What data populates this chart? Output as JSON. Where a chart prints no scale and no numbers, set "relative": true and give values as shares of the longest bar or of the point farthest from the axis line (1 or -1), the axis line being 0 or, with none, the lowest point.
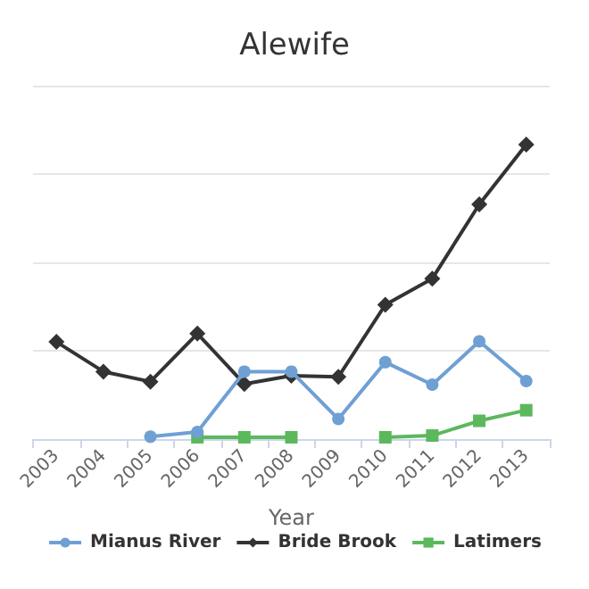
{
  "chart_data": {
    "type": "line",
    "title": "Alewife",
    "xlabel": "Year",
    "categories": [
      "2003",
      "2004",
      "2005",
      "2006",
      "2007",
      "2008",
      "2009",
      "2010",
      "2011",
      "2012",
      "2013"
    ],
    "relative": true,
    "grid": "y",
    "legend": "bottom",
    "series": [
      {
        "name": "Mianus River",
        "color": "#6fa0d4",
        "marker": "circle",
        "values": [
          null,
          null,
          0.008,
          0.024,
          0.229,
          0.229,
          0.068,
          0.261,
          0.185,
          0.332,
          0.197
        ]
      },
      {
        "name": "Bride Brook",
        "color": "#333333",
        "marker": "diamond",
        "values": [
          0.33,
          0.229,
          0.195,
          0.358,
          0.187,
          0.215,
          0.211,
          0.456,
          0.545,
          0.797,
          1
        ]
      },
      {
        "name": "Latimers",
        "color": "#5cb85c",
        "marker": "square",
        "values": [
          null,
          null,
          null,
          0.006,
          0.006,
          0.006,
          null,
          0.006,
          0.012,
          0.062,
          0.098
        ]
      }
    ]
  }
}
